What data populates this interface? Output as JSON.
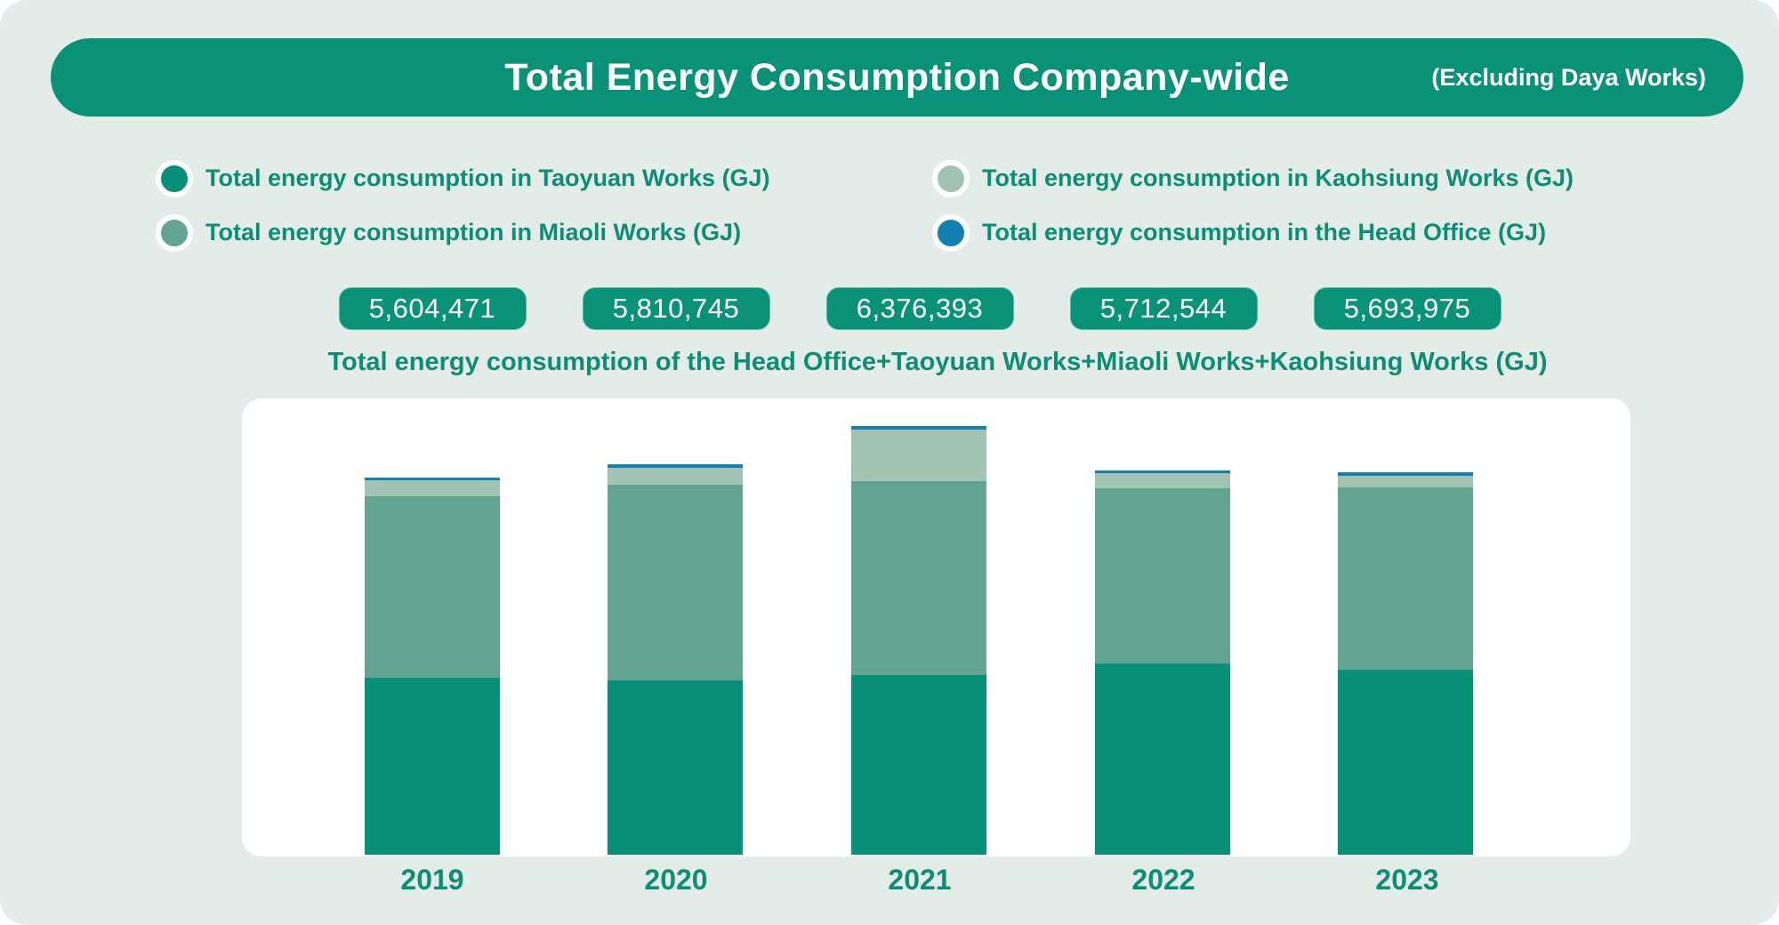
{
  "header": {
    "title": "Total Energy Consumption Company-wide",
    "note": "(Excluding Daya Works)"
  },
  "legend": {
    "columns": [
      {
        "items": [
          {
            "label": "Total energy consumption in Taoyuan Works (GJ)",
            "color": "#089178"
          },
          {
            "label": "Total energy consumption in Miaoli Works (GJ)",
            "color": "#63a391"
          }
        ]
      },
      {
        "items": [
          {
            "label": "Total energy consumption in Kaohsiung Works (GJ)",
            "color": "#a2c3b2"
          },
          {
            "label": "Total energy consumption in the Head Office (GJ)",
            "color": "#1480b2"
          }
        ]
      }
    ]
  },
  "totals_row": {
    "values": [
      "5,604,471",
      "5,810,745",
      "6,376,393",
      "5,712,544",
      "5,693,975"
    ],
    "caption": "Total energy consumption of the Head Office+Taoyuan Works+Miaoli Works+Kaohsiung Works (GJ)"
  },
  "chart_data": {
    "type": "bar",
    "stacked": true,
    "title": "Total Energy Consumption Company-wide (Excluding Daya Works)",
    "xlabel": "",
    "ylabel": "GJ",
    "grid": false,
    "legend_position": "top",
    "categories": [
      "2019",
      "2020",
      "2021",
      "2022",
      "2023"
    ],
    "series": [
      {
        "name": "Total energy consumption in Taoyuan Works (GJ)",
        "short": "taoyuan",
        "color": "#089178",
        "values": [
          2635000,
          2594000,
          2672000,
          2850000,
          2753000
        ]
      },
      {
        "name": "Total energy consumption in Miaoli Works (GJ)",
        "short": "miaoli",
        "color": "#63a391",
        "values": [
          2702000,
          2905000,
          2884000,
          2595000,
          2713000
        ]
      },
      {
        "name": "Total energy consumption in Kaohsiung Works (GJ)",
        "short": "kaohsiung",
        "color": "#a2c3b2",
        "values": [
          227000,
          257000,
          767000,
          227000,
          174000
        ]
      },
      {
        "name": "Total energy consumption in the Head Office (GJ)",
        "short": "head-office",
        "color": "#1480b2",
        "values": [
          40471,
          54745,
          53393,
          40544,
          53975
        ]
      }
    ],
    "totals": [
      5604471,
      5810745,
      6376393,
      5712544,
      5693975
    ]
  },
  "colors": {
    "background": "#e4ece7",
    "panel": "#ffffff",
    "primary": "#0a9278",
    "text_teal": "#0d8d76",
    "taoyuan": "#089178",
    "miaoli": "#63a391",
    "kaohsiung": "#a2c3b2",
    "head_office": "#1480b2"
  }
}
